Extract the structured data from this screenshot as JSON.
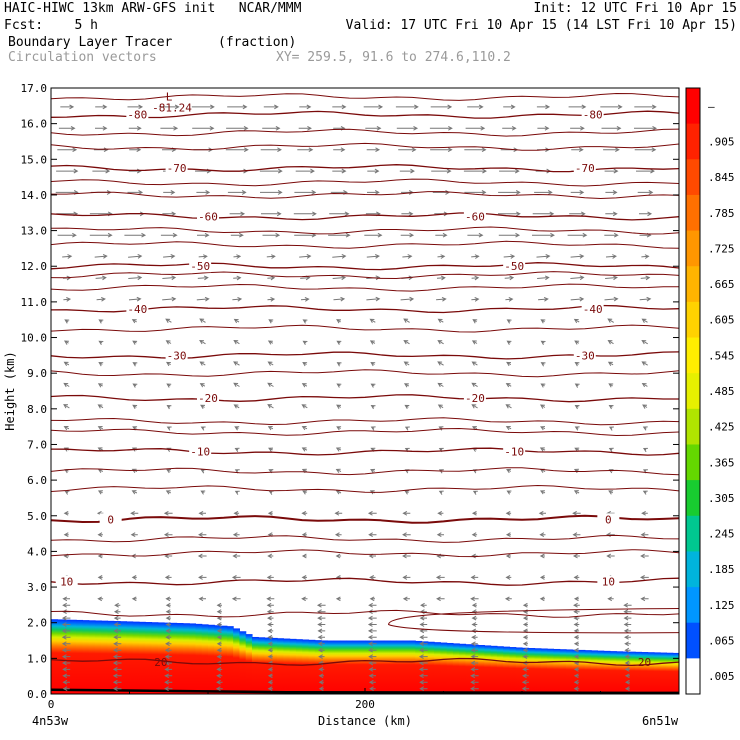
{
  "header": {
    "model_line": "HAIC-HIWC 13km ARW-GFS init   NCAR/MMM",
    "init_line": "Init: 12 UTC Fri 10 Apr 15",
    "fcst_line": "Fcst:    5 h",
    "valid_line": "Valid: 17 UTC Fri 10 Apr 15 (14 LST Fri 10 Apr 15)",
    "field_line": "Boundary Layer Tracer",
    "field_units": "(fraction)",
    "vector_line": "Circulation vectors",
    "xy_line": "XY= 259.5, 91.6 to 274.6,110.2"
  },
  "chart_data": {
    "type": "heatmap",
    "ylabel": "Height (km)",
    "xlabel": "Distance (km)",
    "x_start_label": "4n53w",
    "x_end_label": "6n51w",
    "ylim": [
      0,
      17
    ],
    "xlim": [
      0,
      400
    ],
    "y_ticks": [
      "0.0",
      "1.0",
      "2.0",
      "3.0",
      "4.0",
      "5.0",
      "6.0",
      "7.0",
      "8.0",
      "9.0",
      "10.0",
      "11.0",
      "12.0",
      "13.0",
      "14.0",
      "15.0",
      "16.0",
      "17.0"
    ],
    "x_ticks": [
      {
        "value": 0,
        "label": "0"
      },
      {
        "value": 200,
        "label": "200"
      }
    ],
    "tracer_top": {
      "x": [
        0,
        40,
        90,
        115,
        130,
        175,
        230,
        300,
        360,
        400
      ],
      "y": [
        2.1,
        2.05,
        1.98,
        1.9,
        1.6,
        1.5,
        1.5,
        1.3,
        1.2,
        1.15
      ]
    },
    "colorbar": {
      "labels": [
        "—",
        ".905",
        ".845",
        ".785",
        ".725",
        ".665",
        ".605",
        ".545",
        ".485",
        ".425",
        ".365",
        ".305",
        ".245",
        ".185",
        ".125",
        ".065",
        ".005"
      ],
      "colors": [
        "#ff0000",
        "#ff2200",
        "#ff4a00",
        "#ff7000",
        "#ff9600",
        "#ffb400",
        "#ffd200",
        "#ffee00",
        "#e6f000",
        "#b0e400",
        "#64d800",
        "#18cc30",
        "#00c890",
        "#00b4dc",
        "#0096ff",
        "#0050ff",
        "#ffffff"
      ]
    },
    "temperature_contours": [
      {
        "value": -80,
        "label": "-80",
        "y": 16.25
      },
      {
        "value": -70,
        "label": "-70",
        "y": 14.75
      },
      {
        "value": -60,
        "label": "-60",
        "y": 13.4
      },
      {
        "value": -50,
        "label": "-50",
        "y": 12.0
      },
      {
        "value": -40,
        "label": "-40",
        "y": 10.8
      },
      {
        "value": -30,
        "label": "-30",
        "y": 9.5
      },
      {
        "value": -20,
        "label": "-20",
        "y": 8.3
      },
      {
        "value": -10,
        "label": "-10",
        "y": 6.8
      },
      {
        "value": 0,
        "label": "0",
        "y": 4.9
      },
      {
        "value": 10,
        "label": "10",
        "y": 3.15
      },
      {
        "value": 20,
        "label": "20",
        "y": 0.9
      }
    ],
    "unlabeled_contour_heights": [
      16.75,
      15.75,
      15.35,
      14.35,
      14.0,
      13.0,
      12.6,
      11.75,
      11.4,
      10.25,
      9.0,
      7.65,
      7.35,
      6.25,
      5.75,
      4.35,
      3.95,
      2.25
    ],
    "minimum_label": {
      "label": "L",
      "value_label": "-81.24",
      "x": 72,
      "y": 16.65
    },
    "vectors": [
      {
        "y_min": 12.5,
        "y_max": 16.5,
        "u": 1.0,
        "w": 0.0
      },
      {
        "y_min": 10.5,
        "y_max": 12.5,
        "u": 0.6,
        "w": 0.05
      },
      {
        "y_min": 8.0,
        "y_max": 10.5,
        "u": -0.25,
        "w": 0.15
      },
      {
        "y_min": 5.5,
        "y_max": 8.0,
        "u": -0.2,
        "w": 0.1
      },
      {
        "y_min": 0.1,
        "y_max": 5.5,
        "u": -0.35,
        "w": 0.0
      }
    ]
  }
}
